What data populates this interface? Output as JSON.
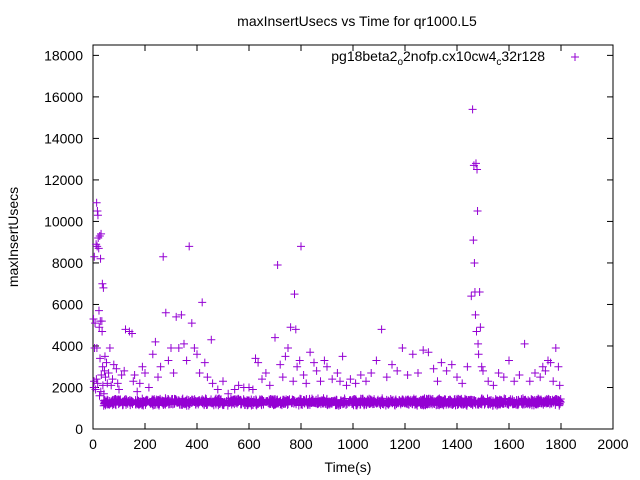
{
  "chart_data": {
    "type": "scatter",
    "title": "maxInsertUsecs vs Time for qr1000.L5",
    "xlabel": "Time(s)",
    "ylabel": "maxInsertUsecs",
    "xlim": [
      0,
      2000
    ],
    "ylim": [
      0,
      18500
    ],
    "x_ticks": [
      0,
      200,
      400,
      600,
      800,
      1000,
      1200,
      1400,
      1600,
      1800,
      2000
    ],
    "y_ticks": [
      0,
      2000,
      4000,
      6000,
      8000,
      10000,
      12000,
      14000,
      16000,
      18000
    ],
    "grid": false,
    "legend_position": "top-right",
    "marker": "plus",
    "series": [
      {
        "name_parts": [
          {
            "text": "pg18beta2",
            "sub": false
          },
          {
            "text": "o",
            "sub": true
          },
          {
            "text": "2nofp.cx10cw4",
            "sub": false
          },
          {
            "text": "c",
            "sub": true
          },
          {
            "text": "32r128",
            "sub": false
          }
        ],
        "color": "#9400d3",
        "points": [
          [
            2,
            5300
          ],
          [
            3,
            2000
          ],
          [
            4,
            2300
          ],
          [
            5,
            8300
          ],
          [
            6,
            3900
          ],
          [
            8,
            5100
          ],
          [
            10,
            1900
          ],
          [
            12,
            8900
          ],
          [
            13,
            2400
          ],
          [
            14,
            10900
          ],
          [
            15,
            3900
          ],
          [
            16,
            8800
          ],
          [
            17,
            10500
          ],
          [
            18,
            2200
          ],
          [
            19,
            10300
          ],
          [
            20,
            9200
          ],
          [
            22,
            8700
          ],
          [
            23,
            5700
          ],
          [
            24,
            4900
          ],
          [
            25,
            1600
          ],
          [
            26,
            9300
          ],
          [
            27,
            3400
          ],
          [
            28,
            5200
          ],
          [
            29,
            8200
          ],
          [
            30,
            1800
          ],
          [
            31,
            9400
          ],
          [
            32,
            2600
          ],
          [
            34,
            5200
          ],
          [
            35,
            4700
          ],
          [
            36,
            7000
          ],
          [
            37,
            3000
          ],
          [
            38,
            2100
          ],
          [
            40,
            6800
          ],
          [
            42,
            1700
          ],
          [
            44,
            2800
          ],
          [
            46,
            3500
          ],
          [
            48,
            2500
          ],
          [
            52,
            3200
          ],
          [
            55,
            2200
          ],
          [
            60,
            2700
          ],
          [
            65,
            3900
          ],
          [
            70,
            2100
          ],
          [
            75,
            2400
          ],
          [
            80,
            3100
          ],
          [
            90,
            2900
          ],
          [
            95,
            2200
          ],
          [
            100,
            1900
          ],
          [
            110,
            2600
          ],
          [
            120,
            2800
          ],
          [
            125,
            4800
          ],
          [
            140,
            4700
          ],
          [
            150,
            4600
          ],
          [
            155,
            2300
          ],
          [
            160,
            2600
          ],
          [
            170,
            1800
          ],
          [
            180,
            2200
          ],
          [
            190,
            3000
          ],
          [
            200,
            2700
          ],
          [
            215,
            2000
          ],
          [
            230,
            3600
          ],
          [
            240,
            4200
          ],
          [
            250,
            2500
          ],
          [
            260,
            3000
          ],
          [
            270,
            8300
          ],
          [
            280,
            5600
          ],
          [
            290,
            3300
          ],
          [
            300,
            3900
          ],
          [
            310,
            2700
          ],
          [
            320,
            5400
          ],
          [
            330,
            3900
          ],
          [
            340,
            5500
          ],
          [
            350,
            4100
          ],
          [
            360,
            3300
          ],
          [
            370,
            8800
          ],
          [
            380,
            5100
          ],
          [
            390,
            3900
          ],
          [
            400,
            3600
          ],
          [
            410,
            2700
          ],
          [
            420,
            6100
          ],
          [
            430,
            3200
          ],
          [
            440,
            2500
          ],
          [
            455,
            4300
          ],
          [
            460,
            2200
          ],
          [
            480,
            1900
          ],
          [
            500,
            2300
          ],
          [
            520,
            1700
          ],
          [
            545,
            1900
          ],
          [
            560,
            2100
          ],
          [
            580,
            2000
          ],
          [
            600,
            2000
          ],
          [
            615,
            1900
          ],
          [
            625,
            3400
          ],
          [
            635,
            3200
          ],
          [
            650,
            2400
          ],
          [
            665,
            2700
          ],
          [
            680,
            2100
          ],
          [
            700,
            4400
          ],
          [
            710,
            7900
          ],
          [
            720,
            3100
          ],
          [
            730,
            2500
          ],
          [
            740,
            3500
          ],
          [
            750,
            3900
          ],
          [
            760,
            4900
          ],
          [
            770,
            2300
          ],
          [
            775,
            6500
          ],
          [
            780,
            4800
          ],
          [
            785,
            3000
          ],
          [
            795,
            3300
          ],
          [
            800,
            8800
          ],
          [
            810,
            2600
          ],
          [
            820,
            2200
          ],
          [
            835,
            3700
          ],
          [
            850,
            3200
          ],
          [
            860,
            2800
          ],
          [
            875,
            2300
          ],
          [
            890,
            3300
          ],
          [
            900,
            3000
          ],
          [
            920,
            2400
          ],
          [
            940,
            2700
          ],
          [
            950,
            2300
          ],
          [
            960,
            3500
          ],
          [
            975,
            2100
          ],
          [
            990,
            2400
          ],
          [
            1010,
            2200
          ],
          [
            1030,
            2600
          ],
          [
            1050,
            2300
          ],
          [
            1070,
            2700
          ],
          [
            1090,
            3300
          ],
          [
            1110,
            4800
          ],
          [
            1130,
            2500
          ],
          [
            1150,
            3100
          ],
          [
            1170,
            2800
          ],
          [
            1190,
            3900
          ],
          [
            1210,
            2600
          ],
          [
            1230,
            3600
          ],
          [
            1250,
            2700
          ],
          [
            1270,
            3800
          ],
          [
            1290,
            3700
          ],
          [
            1310,
            2900
          ],
          [
            1325,
            2300
          ],
          [
            1340,
            3200
          ],
          [
            1360,
            2800
          ],
          [
            1380,
            3100
          ],
          [
            1400,
            2500
          ],
          [
            1420,
            2200
          ],
          [
            1440,
            3000
          ],
          [
            1455,
            6400
          ],
          [
            1460,
            15400
          ],
          [
            1463,
            9100
          ],
          [
            1465,
            12700
          ],
          [
            1467,
            8000
          ],
          [
            1469,
            6600
          ],
          [
            1471,
            5500
          ],
          [
            1473,
            12800
          ],
          [
            1475,
            4700
          ],
          [
            1477,
            12500
          ],
          [
            1479,
            10500
          ],
          [
            1481,
            4100
          ],
          [
            1483,
            3600
          ],
          [
            1487,
            6600
          ],
          [
            1490,
            4900
          ],
          [
            1495,
            3000
          ],
          [
            1500,
            2800
          ],
          [
            1520,
            2300
          ],
          [
            1540,
            2100
          ],
          [
            1560,
            2700
          ],
          [
            1580,
            2500
          ],
          [
            1600,
            3300
          ],
          [
            1620,
            2300
          ],
          [
            1640,
            2600
          ],
          [
            1660,
            4100
          ],
          [
            1680,
            2300
          ],
          [
            1700,
            2700
          ],
          [
            1720,
            2500
          ],
          [
            1730,
            3000
          ],
          [
            1740,
            2800
          ],
          [
            1750,
            3300
          ],
          [
            1760,
            3200
          ],
          [
            1770,
            2300
          ],
          [
            1780,
            3900
          ],
          [
            1790,
            3000
          ],
          [
            1795,
            2100
          ]
        ]
      }
    ],
    "baseline_band": {
      "x_range": [
        40,
        1800
      ],
      "y_center": 1300,
      "y_spread": 120,
      "count": 1600
    }
  }
}
